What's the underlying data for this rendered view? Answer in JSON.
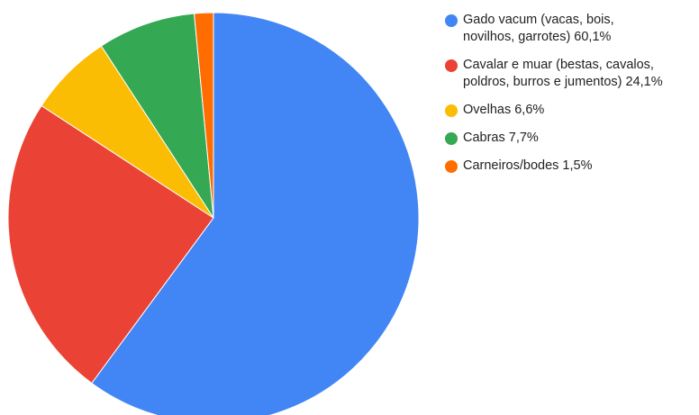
{
  "chart_data": {
    "type": "pie",
    "title": "",
    "start_angle_deg": 0,
    "direction": "clockwise",
    "slices": [
      {
        "line1": "Gado vacum (vacas, bois,",
        "line2": "novilhos, garrotes) 60,1%",
        "value": 60.1,
        "color": "#4285F4"
      },
      {
        "line1": "Cavalar e muar (bestas, cavalos,",
        "line2": "poldros, burros e jumentos) 24,1%",
        "value": 24.1,
        "color": "#EA4335"
      },
      {
        "line1": "Ovelhas 6,6%",
        "line2": "",
        "value": 6.6,
        "color": "#FBBC04"
      },
      {
        "line1": "Cabras 7,7%",
        "line2": "",
        "value": 7.7,
        "color": "#34A853"
      },
      {
        "line1": "Carneiros/bodes 1,5%",
        "line2": "",
        "value": 1.5,
        "color": "#FF6D01"
      }
    ],
    "legend_position": "right"
  }
}
